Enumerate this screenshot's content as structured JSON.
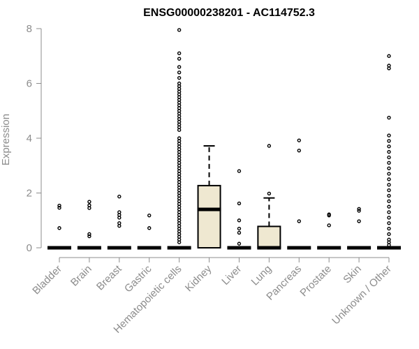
{
  "chart_data": {
    "type": "boxplot",
    "title": "ENSG00000238201 - AC114752.3",
    "xlabel": "",
    "ylabel": "Expression",
    "ylim": [
      0,
      8
    ],
    "yticks": [
      0,
      2,
      4,
      6,
      8
    ],
    "box_fill": "#efe8d1",
    "categories": [
      "Bladder",
      "Brain",
      "Breast",
      "Gastric",
      "Hematopoietic cells",
      "Kidney",
      "Liver",
      "Lung",
      "Pancreas",
      "Prostate",
      "Skin",
      "Unknown / Other"
    ],
    "boxes": [
      {
        "category": "Bladder",
        "q1": 0,
        "median": 0,
        "q3": 0,
        "whisker_low": 0,
        "whisker_high": 0,
        "outliers": [
          0.72,
          1.46,
          1.54
        ]
      },
      {
        "category": "Brain",
        "q1": 0,
        "median": 0,
        "q3": 0,
        "whisker_low": 0,
        "whisker_high": 0,
        "outliers": [
          0.42,
          0.5,
          1.45,
          1.55,
          1.68
        ]
      },
      {
        "category": "Breast",
        "q1": 0,
        "median": 0,
        "q3": 0,
        "whisker_low": 0,
        "whisker_high": 0,
        "outliers": [
          0.8,
          0.9,
          1.1,
          1.2,
          1.3,
          1.87
        ]
      },
      {
        "category": "Gastric",
        "q1": 0,
        "median": 0,
        "q3": 0,
        "whisker_low": 0,
        "whisker_high": 0,
        "outliers": [
          0.72,
          1.18
        ]
      },
      {
        "category": "Hematopoietic cells",
        "q1": 0,
        "median": 0,
        "q3": 0,
        "whisker_low": 0,
        "whisker_high": 0,
        "outliers": [
          0.2,
          0.3,
          0.4,
          0.5,
          0.6,
          0.7,
          0.8,
          0.9,
          1.0,
          1.1,
          1.2,
          1.3,
          1.4,
          1.5,
          1.6,
          1.7,
          1.8,
          1.9,
          2.0,
          2.1,
          2.2,
          2.3,
          2.4,
          2.5,
          2.6,
          2.7,
          2.8,
          2.9,
          3.0,
          3.1,
          3.2,
          3.3,
          3.4,
          3.5,
          3.6,
          3.7,
          3.8,
          3.9,
          4.0,
          4.3,
          4.4,
          4.5,
          4.6,
          4.7,
          4.8,
          4.9,
          5.0,
          5.1,
          5.2,
          5.3,
          5.4,
          5.5,
          5.6,
          5.7,
          5.8,
          5.9,
          6.0,
          6.2,
          6.4,
          6.6,
          6.9,
          7.1,
          7.95
        ]
      },
      {
        "category": "Kidney",
        "q1": 0,
        "median": 1.4,
        "q3": 2.27,
        "whisker_low": 0,
        "whisker_high": 3.72,
        "outliers": []
      },
      {
        "category": "Liver",
        "q1": 0,
        "median": 0,
        "q3": 0,
        "whisker_low": 0,
        "whisker_high": 0,
        "outliers": [
          0.15,
          0.55,
          0.7,
          1.0,
          1.62,
          2.8
        ]
      },
      {
        "category": "Lung",
        "q1": 0,
        "median": 0,
        "q3": 0.78,
        "whisker_low": 0,
        "whisker_high": 1.82,
        "outliers": [
          1.98,
          3.72
        ]
      },
      {
        "category": "Pancreas",
        "q1": 0,
        "median": 0,
        "q3": 0,
        "whisker_low": 0,
        "whisker_high": 0,
        "outliers": [
          0.97,
          3.55,
          3.92
        ]
      },
      {
        "category": "Prostate",
        "q1": 0,
        "median": 0,
        "q3": 0,
        "whisker_low": 0,
        "whisker_high": 0,
        "outliers": [
          0.82,
          1.18,
          1.22
        ]
      },
      {
        "category": "Skin",
        "q1": 0,
        "median": 0,
        "q3": 0,
        "whisker_low": 0,
        "whisker_high": 0,
        "outliers": [
          0.97,
          1.35,
          1.42
        ]
      },
      {
        "category": "Unknown / Other",
        "q1": 0,
        "median": 0,
        "q3": 0,
        "whisker_low": 0,
        "whisker_high": 0,
        "outliers": [
          0.1,
          0.2,
          0.3,
          0.5,
          0.7,
          0.9,
          1.1,
          1.3,
          1.5,
          1.7,
          1.9,
          2.1,
          2.3,
          2.5,
          2.7,
          2.9,
          3.1,
          3.3,
          3.5,
          3.7,
          3.9,
          4.1,
          4.75,
          6.55,
          6.65,
          7.0
        ]
      }
    ]
  }
}
